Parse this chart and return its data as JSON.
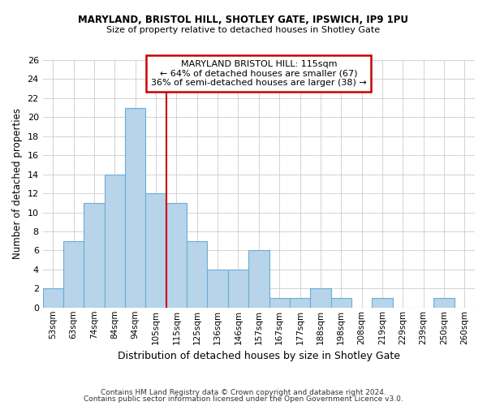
{
  "title1": "MARYLAND, BRISTOL HILL, SHOTLEY GATE, IPSWICH, IP9 1PU",
  "title2": "Size of property relative to detached houses in Shotley Gate",
  "xlabel": "Distribution of detached houses by size in Shotley Gate",
  "ylabel": "Number of detached properties",
  "footnote1": "Contains HM Land Registry data © Crown copyright and database right 2024.",
  "footnote2": "Contains public sector information licensed under the Open Government Licence v3.0.",
  "bin_labels": [
    "53sqm",
    "63sqm",
    "74sqm",
    "84sqm",
    "94sqm",
    "105sqm",
    "115sqm",
    "125sqm",
    "136sqm",
    "146sqm",
    "157sqm",
    "167sqm",
    "177sqm",
    "188sqm",
    "198sqm",
    "208sqm",
    "219sqm",
    "229sqm",
    "239sqm",
    "250sqm",
    "260sqm"
  ],
  "bar_values": [
    2,
    7,
    11,
    14,
    21,
    12,
    11,
    7,
    4,
    4,
    6,
    1,
    1,
    2,
    1,
    0,
    1,
    0,
    0,
    1,
    0
  ],
  "bar_color": "#b8d4ea",
  "bar_edge_color": "#6aaed6",
  "property_line_x": 6,
  "property_value": 115,
  "annotation_title": "MARYLAND BRISTOL HILL: 115sqm",
  "annotation_line1": "← 64% of detached houses are smaller (67)",
  "annotation_line2": "36% of semi-detached houses are larger (38) →",
  "annotation_box_color": "#ffffff",
  "annotation_box_edge": "#cc0000",
  "red_line_color": "#cc0000",
  "ylim": [
    0,
    26
  ],
  "yticks": [
    0,
    2,
    4,
    6,
    8,
    10,
    12,
    14,
    16,
    18,
    20,
    22,
    24,
    26
  ]
}
